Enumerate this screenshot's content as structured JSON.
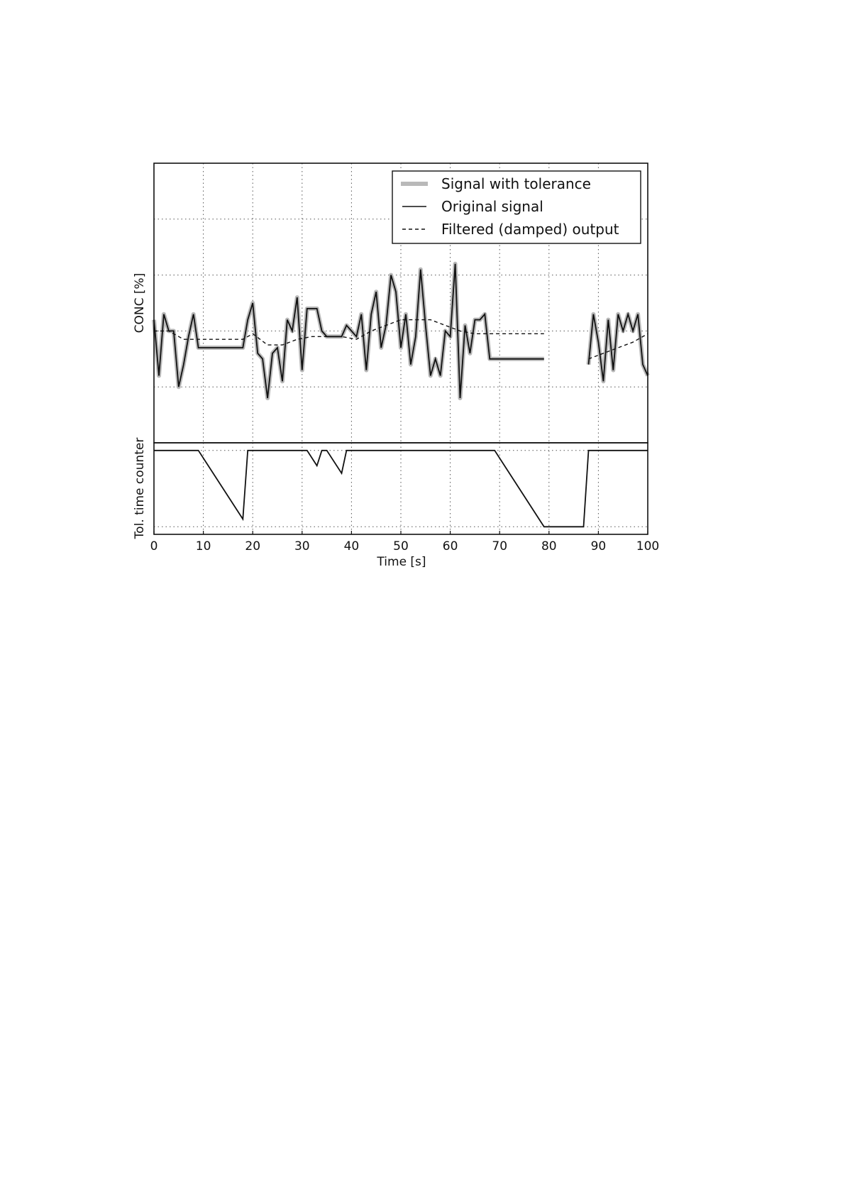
{
  "chart_data": [
    {
      "type": "line",
      "title": "",
      "xlabel": "",
      "ylabel": "CONC [%]",
      "xlim": [
        0,
        100
      ],
      "ylim": [
        0,
        50
      ],
      "grid": true,
      "legend_position": "top-right",
      "series": [
        {
          "name": "Signal with tolerance",
          "style": "thick-gray",
          "segments": [
            {
              "x": [
                0,
                1,
                2,
                3,
                4,
                5,
                6,
                7,
                8,
                9,
                10,
                11,
                12,
                13,
                14,
                15,
                16,
                17,
                18,
                19,
                20,
                21,
                22,
                23,
                24,
                25,
                26,
                27,
                28,
                29,
                30,
                31,
                32,
                33,
                34,
                35,
                36,
                37,
                38,
                39,
                40,
                41,
                42,
                43,
                44,
                45,
                46,
                47,
                48,
                49,
                50,
                51,
                52,
                53,
                54,
                55,
                56,
                57,
                58,
                59,
                60,
                61,
                62,
                63,
                64,
                65,
                66,
                67,
                68,
                69,
                70,
                71,
                72,
                73,
                74,
                75,
                76,
                77,
                78,
                79
              ],
              "y": [
                22,
                12,
                23,
                20,
                20,
                10,
                14,
                19,
                23,
                17,
                17,
                17,
                17,
                17,
                17,
                17,
                17,
                17,
                17,
                22,
                25,
                16,
                15,
                8,
                16,
                17,
                11,
                22,
                20,
                26,
                13,
                24,
                24,
                24,
                20,
                19,
                19,
                19,
                19,
                21,
                20,
                19,
                23,
                13,
                23,
                27,
                17,
                21,
                30,
                27,
                17,
                23,
                14,
                19,
                31,
                21,
                12,
                15,
                12,
                20,
                19,
                32,
                8,
                21,
                16,
                22,
                22,
                23,
                15,
                15,
                15,
                15,
                15,
                15,
                15,
                15,
                15,
                15,
                15,
                15
              ]
            },
            {
              "x": [
                88,
                89,
                90,
                91,
                92,
                93,
                94,
                95,
                96,
                97,
                98,
                99,
                100
              ],
              "y": [
                14,
                23,
                18,
                11,
                22,
                13,
                23,
                20,
                23,
                20,
                23,
                14,
                12
              ]
            }
          ]
        },
        {
          "name": "Original signal",
          "style": "solid-black",
          "segments": [
            {
              "x": [
                0,
                1,
                2,
                3,
                4,
                5,
                6,
                7,
                8,
                9,
                10,
                11,
                12,
                13,
                14,
                15,
                16,
                17,
                18,
                19,
                20,
                21,
                22,
                23,
                24,
                25,
                26,
                27,
                28,
                29,
                30,
                31,
                32,
                33,
                34,
                35,
                36,
                37,
                38,
                39,
                40,
                41,
                42,
                43,
                44,
                45,
                46,
                47,
                48,
                49,
                50,
                51,
                52,
                53,
                54,
                55,
                56,
                57,
                58,
                59,
                60,
                61,
                62,
                63,
                64,
                65,
                66,
                67,
                68,
                69,
                70,
                71,
                72,
                73,
                74,
                75,
                76,
                77,
                78,
                79
              ],
              "y": [
                22,
                12,
                23,
                20,
                20,
                10,
                14,
                19,
                23,
                17,
                17,
                17,
                17,
                17,
                17,
                17,
                17,
                17,
                17,
                22,
                25,
                16,
                15,
                8,
                16,
                17,
                11,
                22,
                20,
                26,
                13,
                24,
                24,
                24,
                20,
                19,
                19,
                19,
                19,
                21,
                20,
                19,
                23,
                13,
                23,
                27,
                17,
                21,
                30,
                27,
                17,
                23,
                14,
                19,
                31,
                21,
                12,
                15,
                12,
                20,
                19,
                32,
                8,
                21,
                16,
                22,
                22,
                23,
                15,
                15,
                15,
                15,
                15,
                15,
                15,
                15,
                15,
                15,
                15,
                15
              ]
            },
            {
              "x": [
                88,
                89,
                90,
                91,
                92,
                93,
                94,
                95,
                96,
                97,
                98,
                99,
                100
              ],
              "y": [
                14,
                23,
                18,
                11,
                22,
                13,
                23,
                20,
                23,
                20,
                23,
                14,
                12
              ]
            }
          ]
        },
        {
          "name": "Filtered (damped) output",
          "style": "dashed-black",
          "segments": [
            {
              "x": [
                0,
                3,
                6,
                9,
                12,
                15,
                18,
                20,
                23,
                26,
                29,
                32,
                35,
                38,
                41,
                44,
                47,
                50,
                53,
                56,
                59,
                62,
                65,
                68,
                71,
                74,
                77,
                79
              ],
              "y": [
                20,
                20,
                18.5,
                18.5,
                18.5,
                18.5,
                18.5,
                19.5,
                17.5,
                17.5,
                18.5,
                19,
                19,
                19,
                18.5,
                20,
                21,
                22,
                22,
                22,
                21,
                20,
                19.5,
                19.5,
                19.5,
                19.5,
                19.5,
                19.5
              ]
            },
            {
              "x": [
                88,
                91,
                94,
                97,
                100
              ],
              "y": [
                15,
                16,
                17,
                18,
                19.5
              ]
            }
          ]
        }
      ]
    },
    {
      "type": "line",
      "title": "",
      "xlabel": "Time [s]",
      "ylabel": "Tol. time counter",
      "xlim": [
        0,
        100
      ],
      "ylim": [
        -1.1,
        0.1
      ],
      "grid": true,
      "x_tick_labels": [
        "0",
        "10",
        "20",
        "30",
        "40",
        "50",
        "60",
        "70",
        "80",
        "90",
        "100"
      ],
      "series": [
        {
          "style": "solid-black",
          "x": [
            0,
            9,
            18,
            19,
            31,
            33,
            34,
            35,
            38,
            39,
            69,
            79,
            87,
            88,
            100
          ],
          "y": [
            0,
            0,
            -0.9,
            0,
            0,
            -0.2,
            0,
            0,
            -0.3,
            0,
            0,
            -1,
            -1,
            0,
            0
          ]
        }
      ]
    }
  ]
}
